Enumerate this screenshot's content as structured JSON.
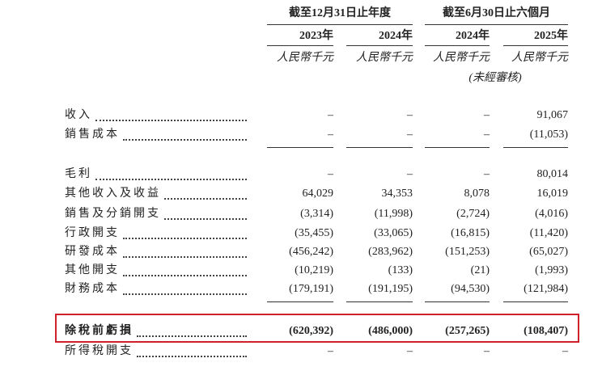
{
  "header": {
    "groups": [
      "截至12月31日止年度",
      "截至6月30日止六個月"
    ],
    "years": [
      "2023年",
      "2024年",
      "2024年",
      "2025年"
    ],
    "units": [
      "人民幣千元",
      "人民幣千元",
      "人民幣千元",
      "人民幣千元"
    ],
    "unaudited": "(未經審核)"
  },
  "table": {
    "rows": [
      {
        "label": "收入",
        "values": [
          "–",
          "–",
          "–",
          "91,067"
        ]
      },
      {
        "label": "銷售成本",
        "values": [
          "–",
          "–",
          "–",
          "(11,053)"
        ]
      },
      {
        "label": "毛利",
        "values": [
          "–",
          "–",
          "–",
          "80,014"
        ]
      },
      {
        "label": "其他收入及收益",
        "values": [
          "64,029",
          "34,353",
          "8,078",
          "16,019"
        ]
      },
      {
        "label": "銷售及分銷開支",
        "values": [
          "(3,314)",
          "(11,998)",
          "(2,724)",
          "(4,016)"
        ]
      },
      {
        "label": "行政開支",
        "values": [
          "(35,455)",
          "(33,065)",
          "(16,815)",
          "(11,420)"
        ]
      },
      {
        "label": "研發成本",
        "values": [
          "(456,242)",
          "(283,962)",
          "(151,253)",
          "(65,027)"
        ]
      },
      {
        "label": "其他開支",
        "values": [
          "(10,219)",
          "(133)",
          "(21)",
          "(1,993)"
        ]
      },
      {
        "label": "財務成本",
        "values": [
          "(179,191)",
          "(191,195)",
          "(94,530)",
          "(121,984)"
        ]
      },
      {
        "label": "除稅前虧損",
        "values": [
          "(620,392)",
          "(486,000)",
          "(257,265)",
          "(108,407)"
        ]
      },
      {
        "label": "所得稅開支",
        "values": [
          "–",
          "–",
          "–",
          "–"
        ]
      }
    ]
  }
}
